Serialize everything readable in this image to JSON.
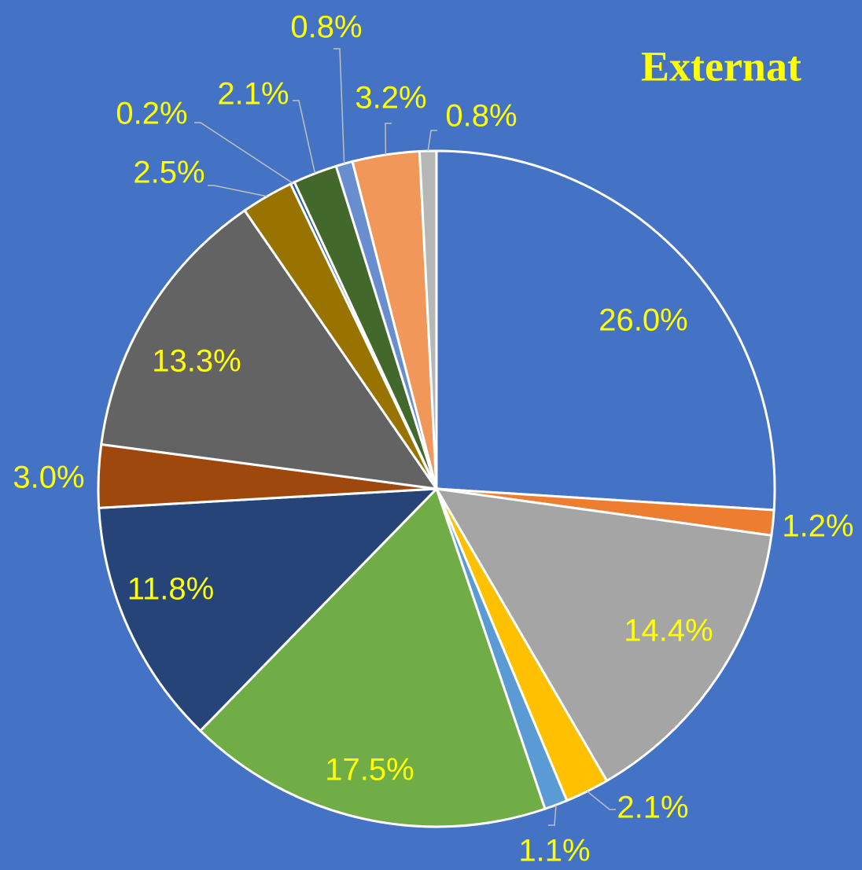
{
  "chart_data": {
    "type": "pie",
    "title": "Externat",
    "values": [
      26.0,
      1.2,
      14.4,
      2.1,
      1.1,
      17.5,
      11.8,
      3.0,
      13.3,
      2.5,
      0.2,
      2.1,
      0.8,
      3.2,
      0.8
    ],
    "value_labels": [
      "26.0%",
      "1.2%",
      "14.4%",
      "2.1%",
      "1.1%",
      "17.5%",
      "11.8%",
      "3.0%",
      "13.3%",
      "2.5%",
      "0.2%",
      "2.1%",
      "0.8%",
      "3.2%",
      "0.8%"
    ],
    "colors": [
      "#4472c4",
      "#ed7d31",
      "#a5a5a5",
      "#ffc000",
      "#5b9bd5",
      "#70ad47",
      "#264478",
      "#9e480e",
      "#636363",
      "#997300",
      "#255e91",
      "#43682b",
      "#698ed0",
      "#f1975a",
      "#b7b7b7"
    ]
  }
}
